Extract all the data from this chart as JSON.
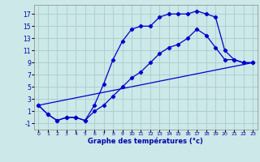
{
  "xlabel": "Graphe des températures (°c)",
  "bg_color": "#cce8e8",
  "grid_color": "#aacccc",
  "line_color": "#0000cc",
  "xlim": [
    -0.5,
    23.5
  ],
  "ylim": [
    -2,
    18.5
  ],
  "xticks": [
    0,
    1,
    2,
    3,
    4,
    5,
    6,
    7,
    8,
    9,
    10,
    11,
    12,
    13,
    14,
    15,
    16,
    17,
    18,
    19,
    20,
    21,
    22,
    23
  ],
  "yticks": [
    -1,
    1,
    3,
    5,
    7,
    9,
    11,
    13,
    15,
    17
  ],
  "line1_x": [
    0,
    1,
    2,
    3,
    4,
    5,
    6,
    7,
    8,
    9,
    10,
    11,
    12,
    13,
    14,
    15,
    16,
    17,
    18,
    19,
    20,
    21,
    22,
    23
  ],
  "line1_y": [
    2,
    0.5,
    -0.5,
    0,
    0,
    -0.5,
    2,
    5.5,
    9.5,
    12.5,
    14.5,
    15,
    15,
    16.5,
    17,
    17,
    17,
    17.5,
    17,
    16.5,
    11,
    9.5,
    9,
    9
  ],
  "line2_x": [
    0,
    1,
    2,
    3,
    4,
    5,
    6,
    7,
    8,
    9,
    10,
    11,
    12,
    13,
    14,
    15,
    16,
    17,
    18,
    19,
    20,
    21,
    22,
    23
  ],
  "line2_y": [
    2,
    0.5,
    -0.5,
    0,
    0,
    -0.5,
    1,
    2,
    3.5,
    5,
    6.5,
    7.5,
    9,
    10.5,
    11.5,
    12,
    13,
    14.5,
    13.5,
    11.5,
    9.5,
    9.5,
    9,
    9
  ],
  "line3_x": [
    0,
    23
  ],
  "line3_y": [
    2,
    9
  ],
  "marker": "D",
  "markersize": 2.2,
  "linewidth": 0.9
}
